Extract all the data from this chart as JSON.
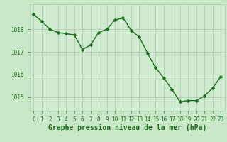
{
  "x": [
    0,
    1,
    2,
    3,
    4,
    5,
    6,
    7,
    8,
    9,
    10,
    11,
    12,
    13,
    14,
    15,
    16,
    17,
    18,
    19,
    20,
    21,
    22,
    23
  ],
  "y": [
    1018.65,
    1018.35,
    1018.0,
    1017.85,
    1017.8,
    1017.75,
    1017.1,
    1017.3,
    1017.85,
    1018.0,
    1018.4,
    1018.5,
    1017.95,
    1017.65,
    1016.95,
    1016.3,
    1015.85,
    1015.35,
    1014.8,
    1014.85,
    1014.85,
    1015.05,
    1015.4,
    1015.9
  ],
  "line_color": "#1a6b1a",
  "marker": "D",
  "markersize": 2.5,
  "linewidth": 1.0,
  "background_color": "#c8e8c8",
  "plot_bg_color": "#d0ecd0",
  "grid_color": "#b0c8b0",
  "xlabel": "Graphe pression niveau de la mer (hPa)",
  "xlabel_color": "#1a6b1a",
  "tick_color": "#1a6b1a",
  "ylim": [
    1014.4,
    1019.1
  ],
  "xlim": [
    -0.5,
    23.5
  ],
  "yticks": [
    1015,
    1016,
    1017,
    1018
  ],
  "xticks": [
    0,
    1,
    2,
    3,
    4,
    5,
    6,
    7,
    8,
    9,
    10,
    11,
    12,
    13,
    14,
    15,
    16,
    17,
    18,
    19,
    20,
    21,
    22,
    23
  ],
  "xtick_labels": [
    "0",
    "1",
    "2",
    "3",
    "4",
    "5",
    "6",
    "7",
    "8",
    "9",
    "10",
    "11",
    "12",
    "13",
    "14",
    "15",
    "16",
    "17",
    "18",
    "19",
    "20",
    "21",
    "22",
    "23"
  ],
  "tick_fontsize": 5.5,
  "xlabel_fontsize": 7.0,
  "xlabel_bold": true
}
